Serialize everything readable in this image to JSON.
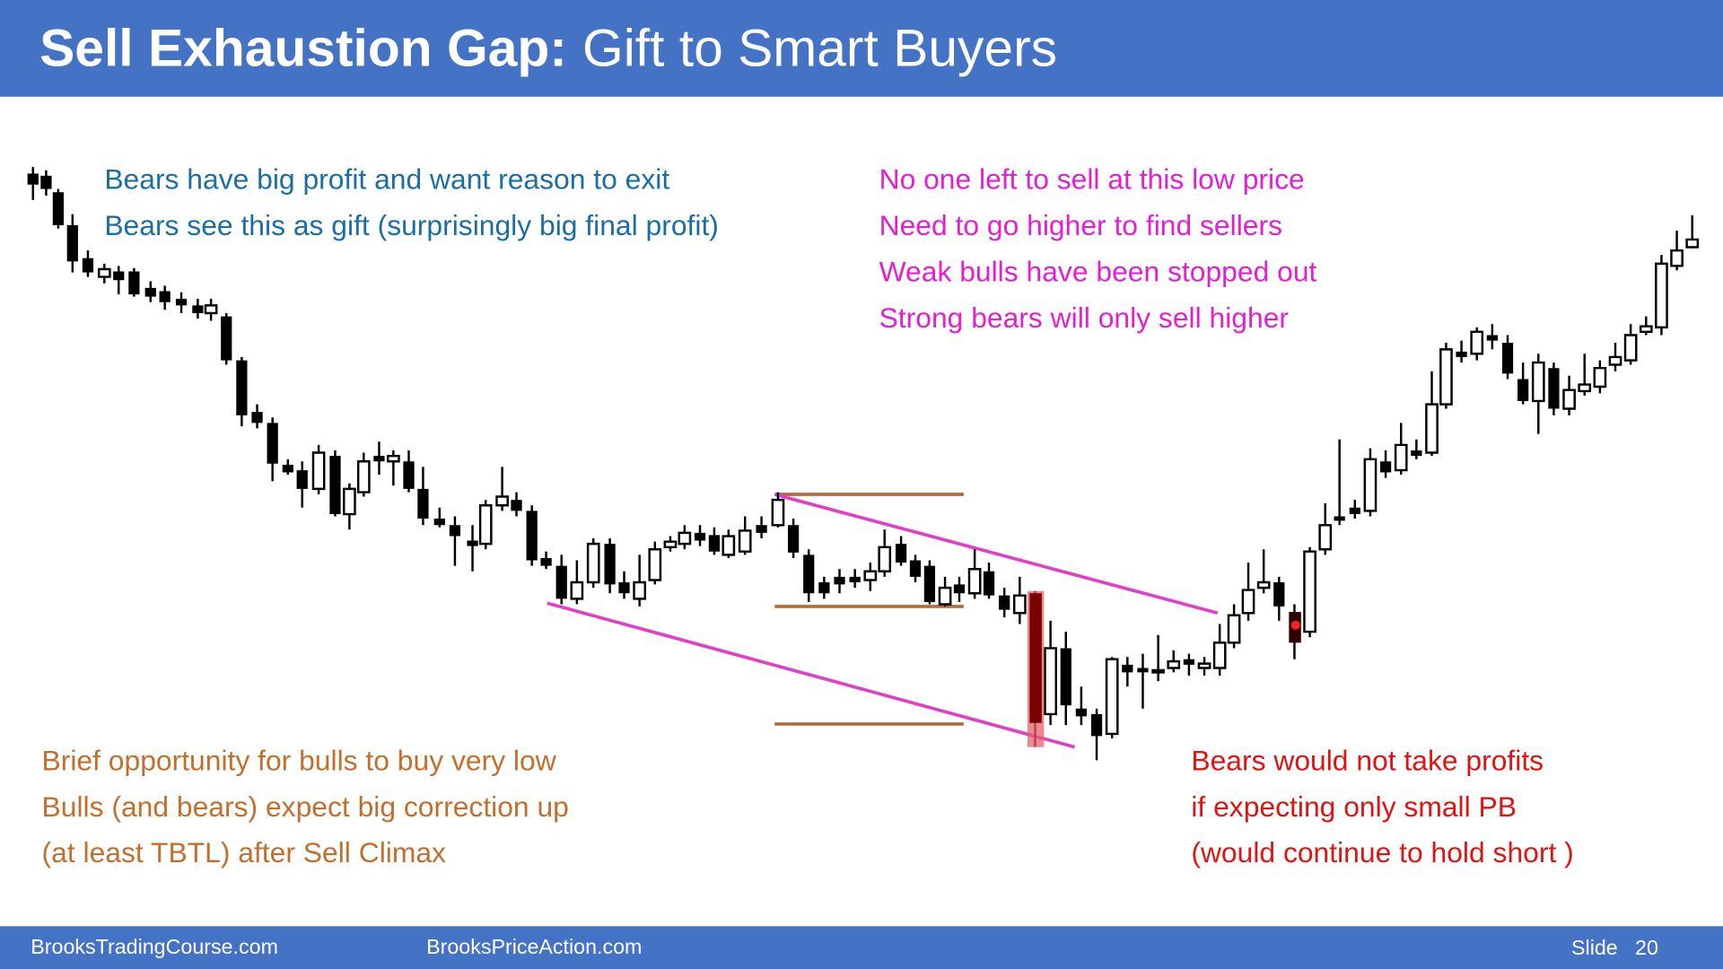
{
  "header": {
    "title_bold": "Sell Exhaustion Gap:",
    "title_rest": "Gift to Smart Buyers"
  },
  "notes": {
    "bears_exit": [
      "Bears have big profit and want reason to exit",
      "Bears see this as gift (surprisingly big final profit)"
    ],
    "no_sellers": [
      "No one left to sell at this low price",
      "Need to go higher to find sellers",
      "Weak bulls have been stopped out",
      "Strong bears will only sell higher"
    ],
    "bulls_buy": [
      "Brief opportunity for bulls to buy very low",
      "Bulls (and bears) expect big correction up",
      "(at least TBTL) after Sell Climax"
    ],
    "bears_hold": [
      "Bears would not take profits",
      "if expecting only small PB",
      "(would continue to hold short )"
    ]
  },
  "footer": {
    "site_1": "BrooksTradingCourse.com",
    "site_2": "BrooksPriceAction.com",
    "slide_label": "Slide",
    "slide_number": "20"
  }
}
